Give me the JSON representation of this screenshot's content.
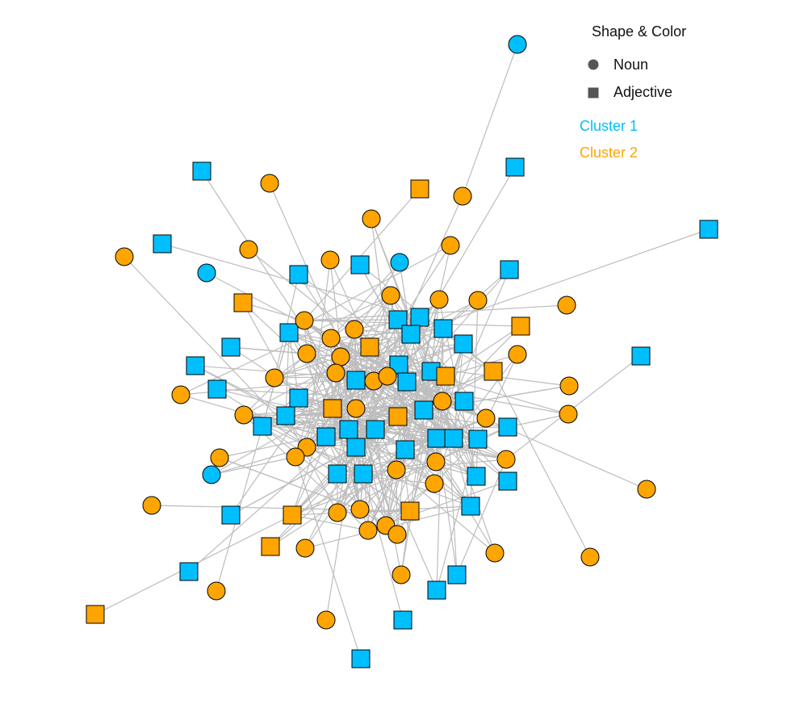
{
  "legend": {
    "title": "Shape & Color",
    "shapes": [
      "Noun",
      "Adjective"
    ],
    "clusters": [
      {
        "label": "Cluster 1",
        "color": "#00bfff"
      },
      {
        "label": "Cluster 2",
        "color": "#ffa500"
      }
    ]
  }
}
